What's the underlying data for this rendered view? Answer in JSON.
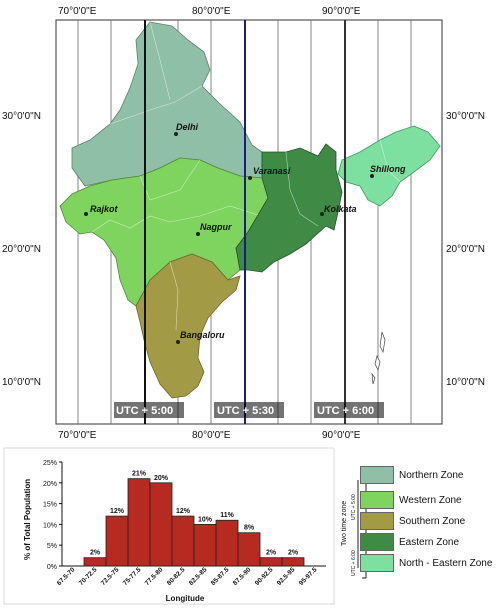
{
  "map": {
    "top_longitudes": [
      "70°0'0\"E",
      "80°0'0\"E",
      "90°0'0\"E"
    ],
    "bottom_longitudes": [
      "70°0'0\"E",
      "80°0'0\"E",
      "90°0'0\"E"
    ],
    "left_latitudes": [
      "30°0'0\"N",
      "20°0'0\"N",
      "10°0'0\"N"
    ],
    "right_latitudes": [
      "30°0'0\"N",
      "20°0'0\"N",
      "10°0'0\"N"
    ],
    "cities": [
      "Delhi",
      "Varanasi",
      "Shillong",
      "Rajkot",
      "Nagpur",
      "Kolkata",
      "Bangaloru"
    ],
    "utc_labels": [
      "UTC + 5:00",
      "UTC + 5:30",
      "UTC + 6:00"
    ],
    "utc_line_colors": [
      "#111111",
      "#1b1b8c",
      "#333333"
    ],
    "zone_colors": {
      "northern": "#8fbfa6",
      "western": "#7fd35f",
      "southern": "#a39a45",
      "eastern": "#3f8a44",
      "north_eastern": "#7ee0a0"
    }
  },
  "legend": {
    "items": [
      {
        "label": "Northern Zone",
        "color": "#8fbfa6"
      },
      {
        "label": "Western Zone",
        "color": "#7fd35f"
      },
      {
        "label": "Southern Zone",
        "color": "#a39a45"
      },
      {
        "label": "Eastern Zone",
        "color": "#3f8a44"
      },
      {
        "label": "North - Eastern Zone",
        "color": "#7ee0a0"
      }
    ],
    "bracket_top": "Two time zone",
    "bracket_sub_top": "UTC + 5:00",
    "bracket_sub_bottom": "UTC + 6:00"
  },
  "chart_data": {
    "type": "bar",
    "xlabel": "Longitude",
    "ylabel": "% of Total Population",
    "categories": [
      "67.5-70",
      "70-72.5",
      "72.5-75",
      "75-77.5",
      "77.5-80",
      "80-82.5",
      "82.5-85",
      "85-87.5",
      "87.5-90",
      "90-92.5",
      "92.5-95",
      "95-97.5"
    ],
    "values": [
      0,
      2,
      12,
      21,
      20,
      12,
      10,
      11,
      8,
      2,
      2,
      0
    ],
    "data_labels": [
      "",
      "2%",
      "12%",
      "21%",
      "20%",
      "12%",
      "10%",
      "11%",
      "8%",
      "2%",
      "2%",
      ""
    ],
    "y_ticks": [
      "0%",
      "5%",
      "10%",
      "15%",
      "20%",
      "25%"
    ],
    "ylim": [
      0,
      25
    ],
    "bar_color": "#b72a22",
    "grid": false
  }
}
